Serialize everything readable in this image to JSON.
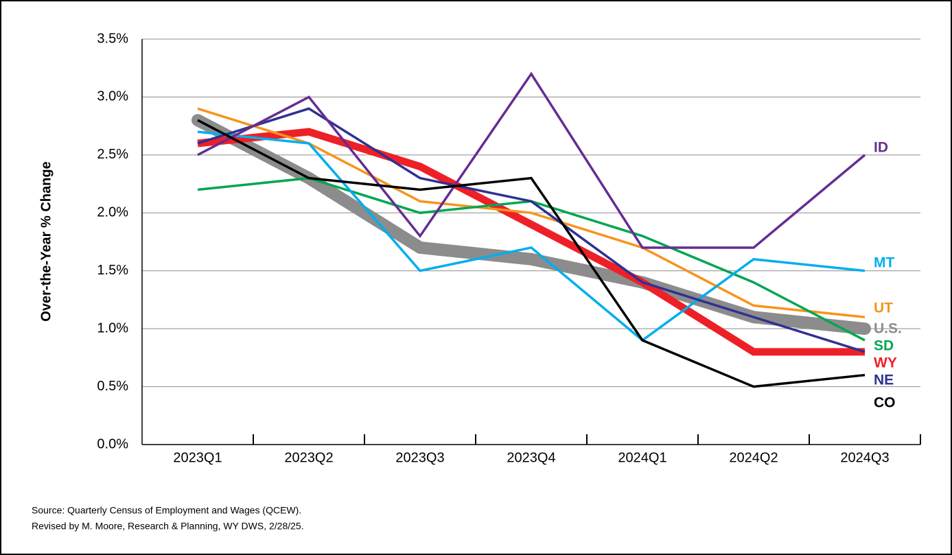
{
  "chart_data": {
    "type": "line",
    "y_label": "Over-the-Year % Change",
    "categories": [
      "2023Q1",
      "2023Q2",
      "2023Q3",
      "2023Q4",
      "2024Q1",
      "2024Q2",
      "2024Q3"
    ],
    "series": [
      {
        "name": "U.S.",
        "color": "#8c8c8c",
        "values": [
          2.8,
          2.3,
          1.7,
          1.6,
          1.4,
          1.1,
          1.0
        ]
      },
      {
        "name": "WY",
        "color": "#ee2027",
        "values": [
          2.6,
          2.7,
          2.4,
          1.9,
          1.4,
          0.8,
          0.8
        ]
      },
      {
        "name": "UT",
        "color": "#f7941d",
        "values": [
          2.9,
          2.6,
          2.1,
          2.0,
          1.7,
          1.2,
          1.1
        ]
      },
      {
        "name": "SD",
        "color": "#00a651",
        "values": [
          2.2,
          2.3,
          2.0,
          2.1,
          1.8,
          1.4,
          0.9
        ]
      },
      {
        "name": "MT",
        "color": "#00aeef",
        "values": [
          2.7,
          2.6,
          1.5,
          1.7,
          0.9,
          1.6,
          1.5
        ]
      },
      {
        "name": "NE",
        "color": "#2e3192",
        "values": [
          2.6,
          2.9,
          2.3,
          2.1,
          1.4,
          1.1,
          0.8
        ]
      },
      {
        "name": "ID",
        "color": "#662d91",
        "values": [
          2.5,
          3.0,
          1.8,
          3.2,
          1.7,
          1.7,
          2.5
        ]
      },
      {
        "name": "CO",
        "color": "#000000",
        "values": [
          2.8,
          2.3,
          2.2,
          2.3,
          0.9,
          0.5,
          0.6
        ]
      }
    ],
    "ylim": [
      0,
      3.5
    ],
    "yticks": [
      {
        "value": 0,
        "label": "0.0%"
      },
      {
        "value": 0.5,
        "label": "0.5%"
      },
      {
        "value": 1,
        "label": "1.0%"
      },
      {
        "value": 1.5,
        "label": "1.5%"
      },
      {
        "value": 2,
        "label": "2.0%"
      },
      {
        "value": 2.5,
        "label": "2.5%"
      },
      {
        "value": 3,
        "label": "3.0%"
      },
      {
        "value": 3.5,
        "label": "3.5%"
      }
    ],
    "grid": true,
    "notes": [
      "Source: Quarterly Census of Employment and Wages (QCEW).",
      "Revised by M. Moore, Research & Planning, WY DWS, 2/28/25."
    ]
  }
}
